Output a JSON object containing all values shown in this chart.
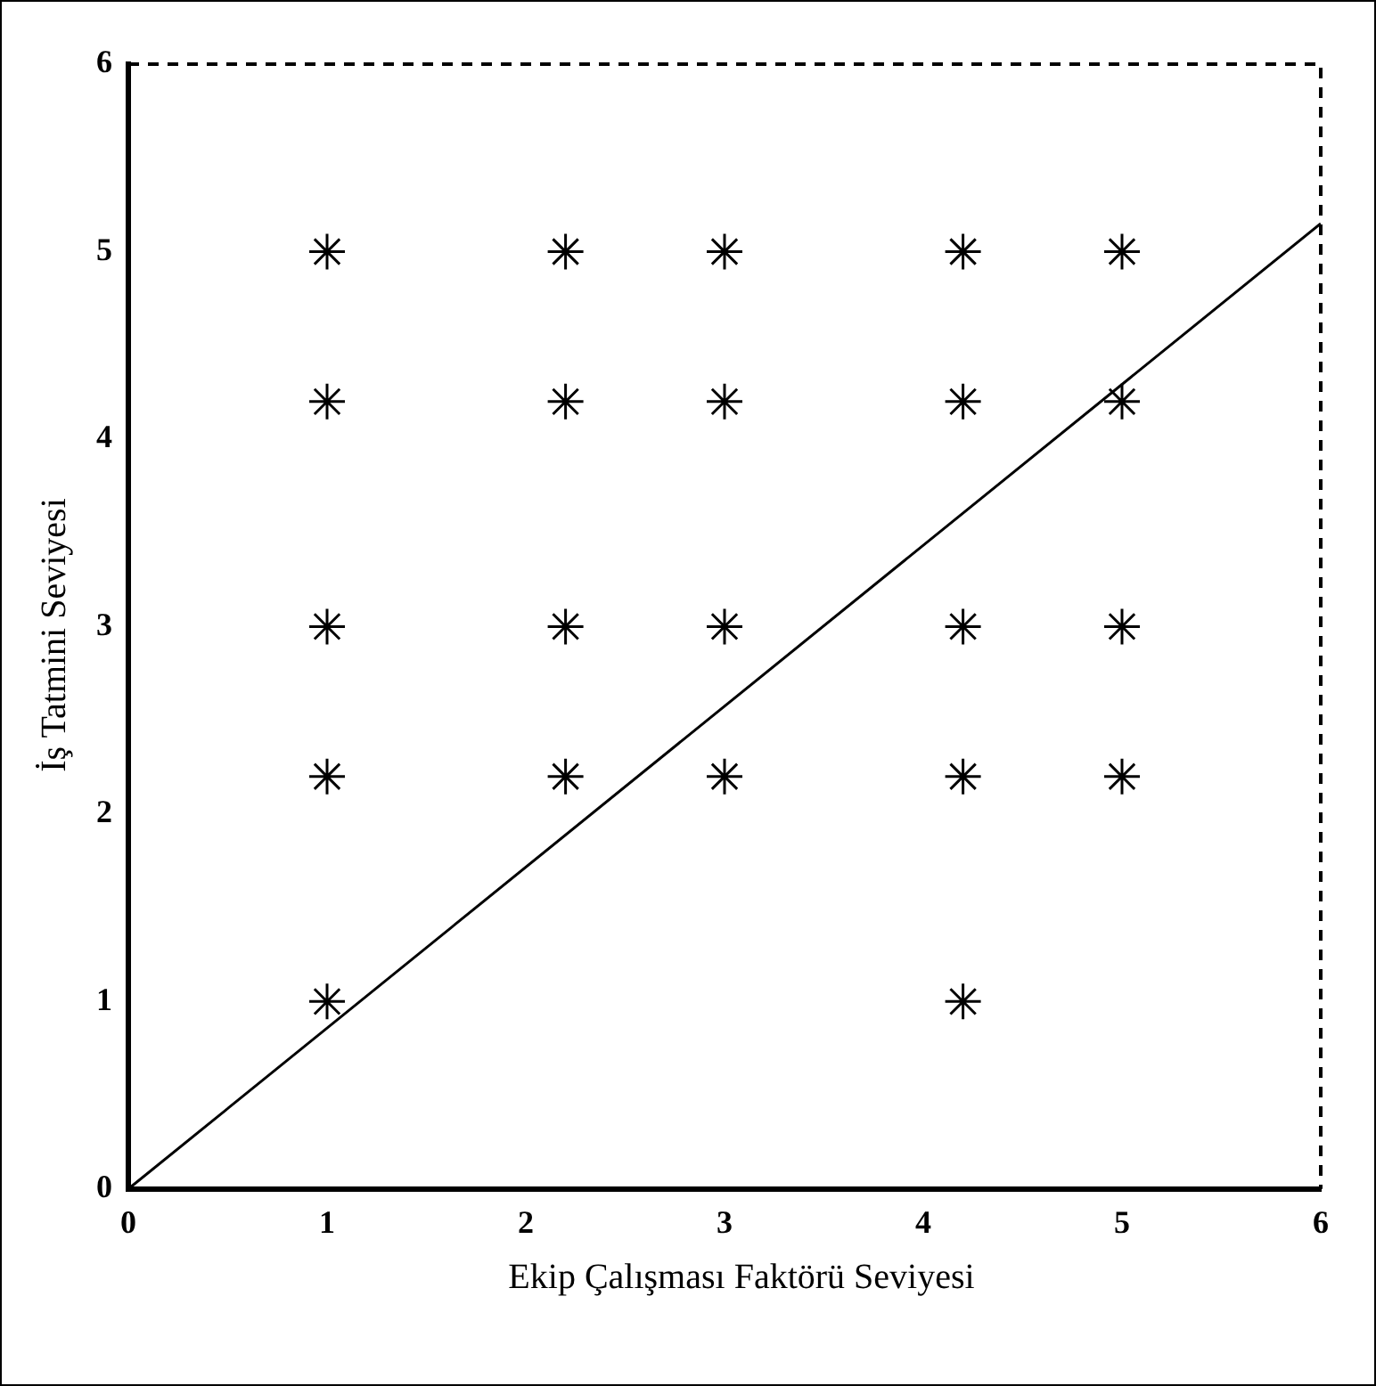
{
  "chart_data": {
    "type": "scatter",
    "xlabel": "Ekip Çalışması Faktörü Seviyesi",
    "ylabel": "İş Tatmini Seviyesi",
    "xlim": [
      0,
      6
    ],
    "ylim": [
      0,
      6
    ],
    "xticks": [
      0,
      1,
      2,
      3,
      4,
      5,
      6
    ],
    "yticks": [
      0,
      1,
      2,
      3,
      4,
      5,
      6
    ],
    "grid": false,
    "legend": false,
    "marker": "cross",
    "series": [
      {
        "color": "#000000",
        "x": [
          1,
          2.2,
          3,
          4.2,
          5,
          1,
          2.2,
          3,
          4.2,
          5,
          1,
          2.2,
          3,
          4.2,
          5,
          1,
          2.2,
          3,
          4.2,
          5,
          1,
          4.2
        ],
        "values": [
          5,
          5,
          5,
          5,
          5,
          4.2,
          4.2,
          4.2,
          4.2,
          4.2,
          3,
          3,
          3,
          3,
          3,
          2.2,
          2.2,
          2.2,
          2.2,
          2.2,
          1,
          1
        ]
      },
      {
        "type": "line",
        "color": "#000000",
        "x": [
          0,
          6
        ],
        "values": [
          0,
          5.15
        ],
        "marker": "none",
        "line_style": "solid"
      }
    ]
  }
}
